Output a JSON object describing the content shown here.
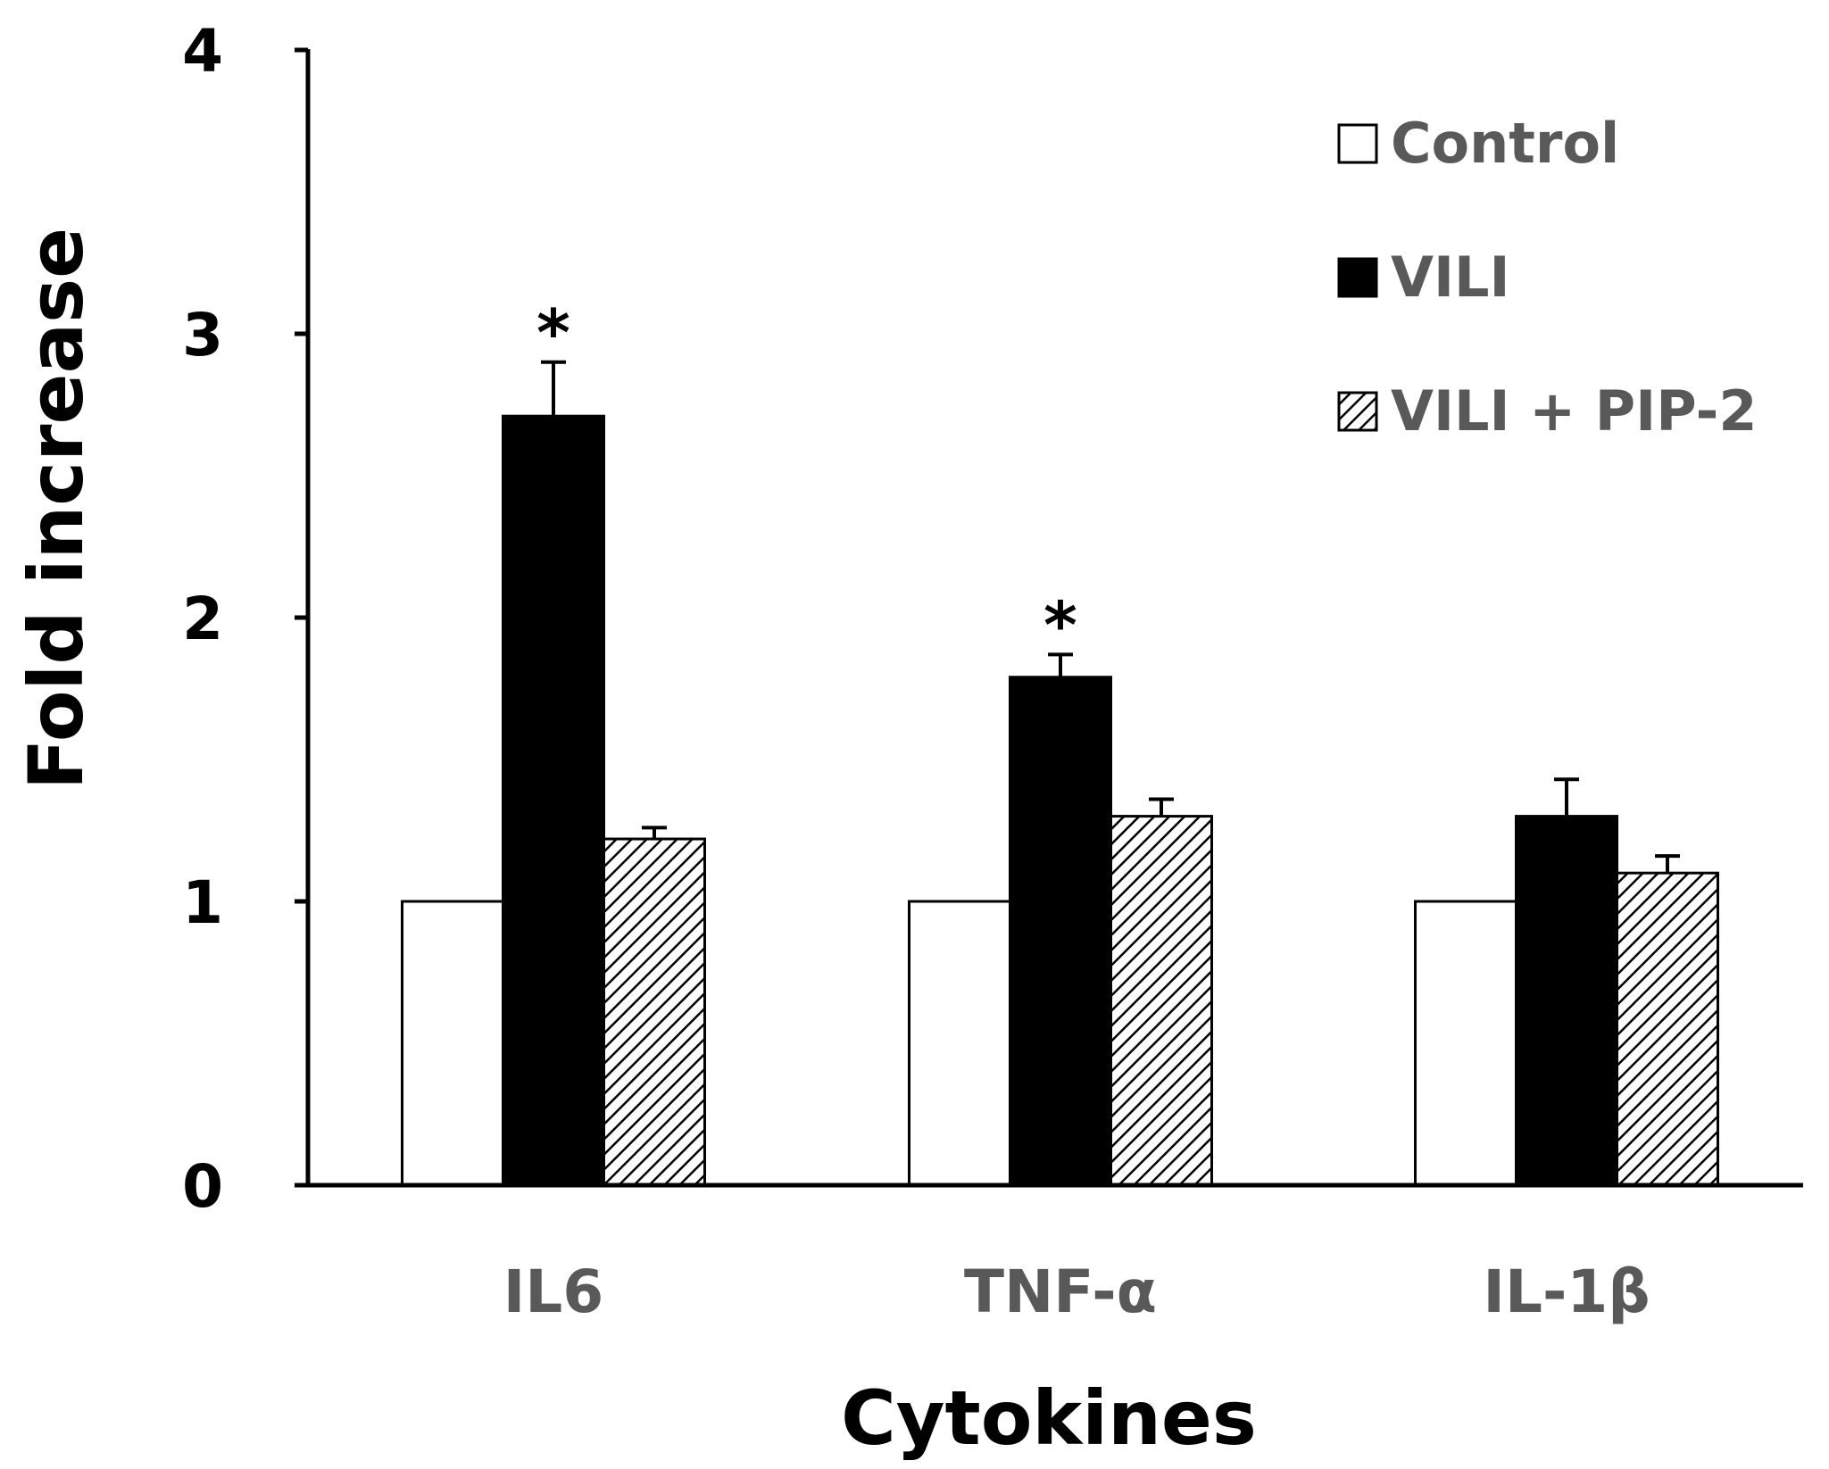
{
  "chart_data": {
    "type": "bar",
    "title": "",
    "xlabel": "Cytokines",
    "ylabel": "Fold increase",
    "categories": [
      "IL6",
      "TNF-α",
      "IL-1β"
    ],
    "ylim": [
      0,
      4
    ],
    "yticks": [
      "0",
      "1",
      "2",
      "3",
      "4"
    ],
    "grid": false,
    "legend_position": "top-right",
    "series": [
      {
        "name": "Control",
        "fill": "#ffffff",
        "pattern": "none",
        "values": [
          1.0,
          1.0,
          1.0
        ],
        "errors": [
          0,
          0,
          0
        ],
        "significance": [
          "",
          "",
          ""
        ]
      },
      {
        "name": "VILI",
        "fill": "#000000",
        "pattern": "none",
        "values": [
          2.71,
          1.79,
          1.3
        ],
        "errors": [
          0.19,
          0.08,
          0.13
        ],
        "significance": [
          "*",
          "*",
          ""
        ]
      },
      {
        "name": "VILI + PIP-2",
        "fill": "#ffffff",
        "pattern": "diagonal-hatch",
        "values": [
          1.22,
          1.3,
          1.1
        ],
        "errors": [
          0.04,
          0.06,
          0.06
        ],
        "significance": [
          "",
          "",
          ""
        ]
      }
    ]
  }
}
